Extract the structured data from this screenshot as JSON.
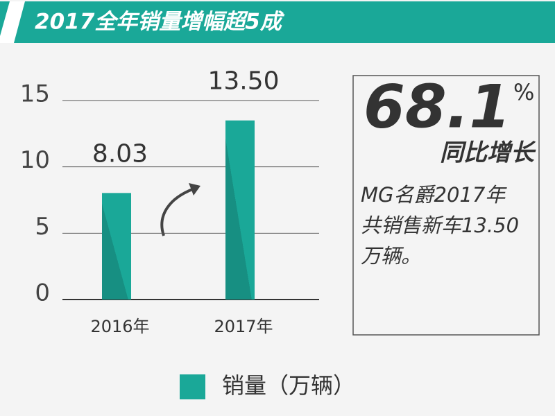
{
  "chart_data": {
    "type": "bar",
    "title": "2017全年销量增幅超5成",
    "categories": [
      "2016年",
      "2017年"
    ],
    "series": [
      {
        "name": "销量（万辆）",
        "color": "#1aa898",
        "values": [
          8.03,
          13.5
        ],
        "value_labels": [
          "8.03",
          "13.50"
        ]
      }
    ],
    "ylim": [
      0,
      15
    ],
    "yticks": [
      0,
      5,
      10,
      15
    ],
    "grid": true,
    "annotations": {
      "growth": "68.1",
      "growth_unit": "%",
      "growth_label": "同比增长",
      "note_lines": [
        "MG名爵2017年",
        "共销售新车13.50",
        "万辆。"
      ]
    }
  }
}
